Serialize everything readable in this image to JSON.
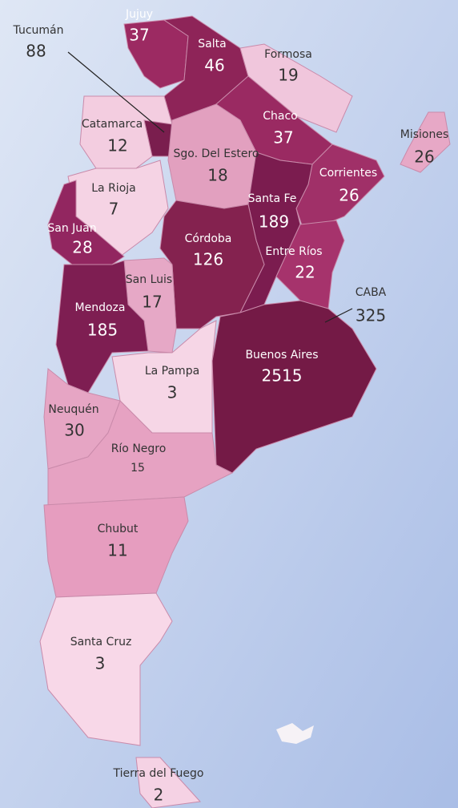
{
  "regions": [
    {
      "name": "Jujuy",
      "value": 37,
      "color": "#9c2a62"
    },
    {
      "name": "Salta",
      "value": 46,
      "color": "#8e2458"
    },
    {
      "name": "Tucumán",
      "value": 88,
      "color": "#7a1e4e"
    },
    {
      "name": "Formosa",
      "value": 19,
      "color": "#f0c6dc"
    },
    {
      "name": "Catamarca",
      "value": 12,
      "color": "#f3cde0"
    },
    {
      "name": "Chaco",
      "value": 37,
      "color": "#9a2a62"
    },
    {
      "name": "Misiones",
      "value": 26,
      "color": "#e7a8c6"
    },
    {
      "name": "Sgo. Del Estero",
      "value": 18,
      "color": "#e2a0bf"
    },
    {
      "name": "Corrientes",
      "value": 26,
      "color": "#a03068"
    },
    {
      "name": "La Rioja",
      "value": 7,
      "color": "#f5d3e4"
    },
    {
      "name": "San Juan",
      "value": 28,
      "color": "#922660"
    },
    {
      "name": "Santa Fe",
      "value": 189,
      "color": "#7b1c4f"
    },
    {
      "name": "Córdoba",
      "value": 126,
      "color": "#84224f"
    },
    {
      "name": "Entre Ríos",
      "value": 22,
      "color": "#a6336c"
    },
    {
      "name": "San Luis",
      "value": 17,
      "color": "#e6a8c6"
    },
    {
      "name": "Mendoza",
      "value": 185,
      "color": "#7e1e52"
    },
    {
      "name": "CABA",
      "value": 325,
      "color": "#6e1744"
    },
    {
      "name": "Buenos Aires",
      "value": 2515,
      "color": "#741a46"
    },
    {
      "name": "La Pampa",
      "value": 3,
      "color": "#f6d6e6"
    },
    {
      "name": "Neuquén",
      "value": 30,
      "color": "#e6a5c4"
    },
    {
      "name": "Río Negro",
      "value": 15,
      "color": "#e6a2c2"
    },
    {
      "name": "Chubut",
      "value": 11,
      "color": "#e69dbf"
    },
    {
      "name": "Santa Cruz",
      "value": 3,
      "color": "#f8d8e8"
    },
    {
      "name": "Tierra del Fuego",
      "value": 2,
      "color": "#f5d2e4"
    }
  ]
}
